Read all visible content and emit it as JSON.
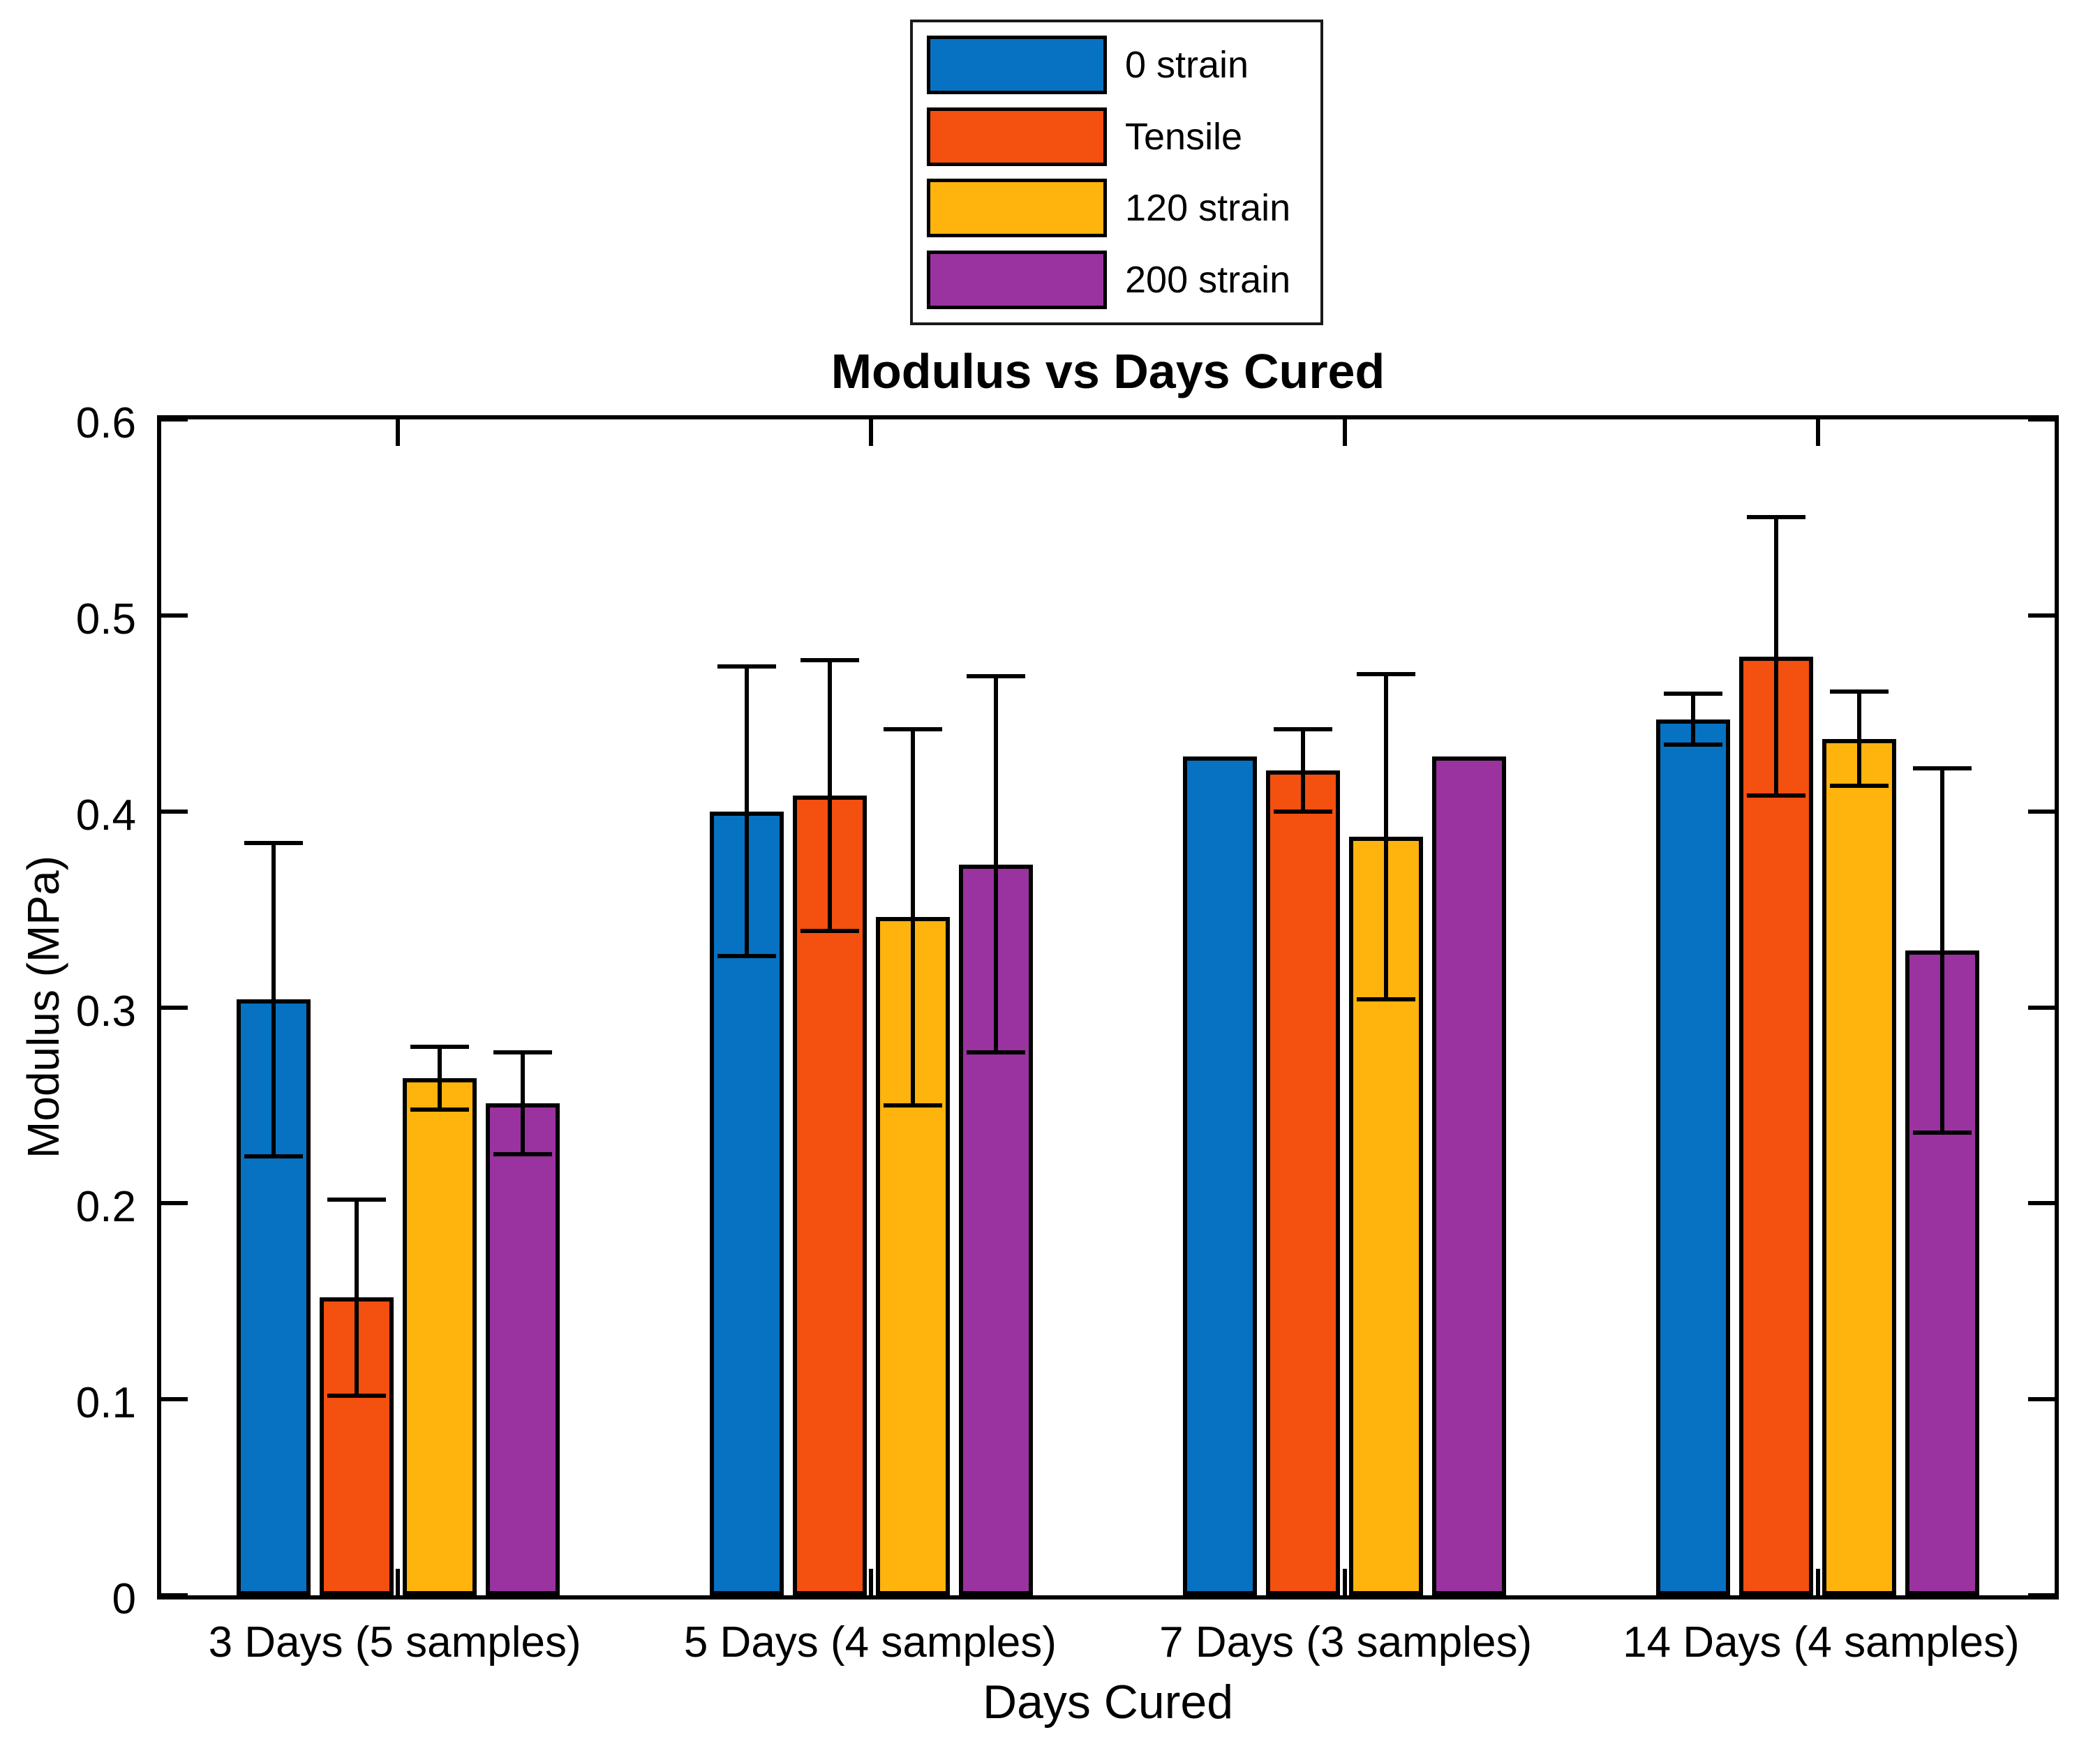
{
  "chart_data": {
    "type": "bar",
    "title": "Modulus vs Days Cured",
    "xlabel": "Days Cured",
    "ylabel": "Modulus (MPa)",
    "ylim": [
      0,
      0.6
    ],
    "yticks": [
      0,
      0.1,
      0.2,
      0.3,
      0.4,
      0.5,
      0.6
    ],
    "ytick_labels": [
      "0",
      "0.1",
      "0.2",
      "0.3",
      "0.4",
      "0.5",
      "0.6"
    ],
    "grid": false,
    "legend_position": "top-center-outside",
    "error_bar_color": "#000000",
    "bar_edge_color": "#000000",
    "categories": [
      "3 Days (5 samples)",
      "5 Days (4 samples)",
      "7 Days (3 samples)",
      "14 Days (4 samples)"
    ],
    "series": [
      {
        "name": "0 strain",
        "color": "#0672C1",
        "values": [
          0.304,
          0.4,
          0.428,
          0.447
        ],
        "errors": [
          0.08,
          0.074,
          null,
          0.013
        ]
      },
      {
        "name": "Tensile",
        "color": "#F4500F",
        "values": [
          0.152,
          0.408,
          0.421,
          0.479
        ],
        "errors": [
          0.05,
          0.069,
          0.021,
          0.071
        ]
      },
      {
        "name": "120 strain",
        "color": "#FFB30D",
        "values": [
          0.264,
          0.346,
          0.387,
          0.437
        ],
        "errors": [
          0.016,
          0.096,
          0.083,
          0.024
        ]
      },
      {
        "name": "200 strain",
        "color": "#9A339F",
        "values": [
          0.251,
          0.373,
          0.428,
          0.329
        ],
        "errors": [
          0.026,
          0.096,
          null,
          0.093
        ]
      }
    ]
  }
}
